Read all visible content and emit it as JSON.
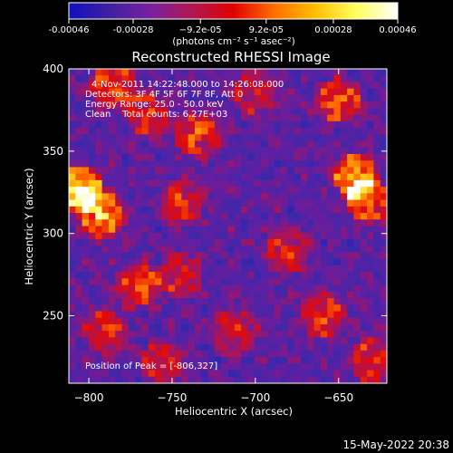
{
  "colorbar": {
    "tick_labels": [
      "-0.00046",
      "-0.00028",
      "−9.2e-05",
      "9.2e-05",
      "0.00028",
      "0.00046"
    ],
    "tick_values": [
      -0.00046,
      -0.00028,
      -9.2e-05,
      9.2e-05,
      0.00028,
      0.00046
    ],
    "range": [
      -0.00046,
      0.00046
    ],
    "unit_label": "(photons cm⁻² s⁻¹ asec⁻²)",
    "colors": [
      "#1010c0",
      "#4020a0",
      "#7a20a0",
      "#b01850",
      "#e00000",
      "#ff7000",
      "#ffc000",
      "#ffff60",
      "#ffffff"
    ]
  },
  "chart_data": {
    "type": "heatmap",
    "title": "Reconstructed RHESSI Image",
    "xlabel": "Heliocentric X (arcsec)",
    "ylabel": "Heliocentric Y (arcsec)",
    "xlim": [
      -812,
      -621
    ],
    "ylim": [
      209,
      400
    ],
    "x_ticks": [
      -800,
      -750,
      -700,
      -650
    ],
    "x_tick_labels": [
      "−800",
      "−750",
      "−700",
      "−650"
    ],
    "y_ticks": [
      250,
      300,
      350,
      400
    ],
    "y_tick_labels": [
      "250",
      "300",
      "350",
      "400"
    ],
    "annotations": {
      "time_range": "4-Nov-2011 14:22:48.000 to 14:26:08.000",
      "detectors": "Detectors: 3F 4F 5F 6F 7F 8F, Att 0",
      "energy_range": "Energy Range: 25.0 - 50.0 keV",
      "method": "Clean    Total counts: 6.27E+03",
      "peak": "Position of Peak = [-806,327]"
    },
    "peak_position": [
      -806,
      327
    ],
    "hotspots": [
      {
        "x": -806,
        "y": 327,
        "amp": 1.0
      },
      {
        "x": -792,
        "y": 311,
        "amp": 0.75
      },
      {
        "x": -785,
        "y": 390,
        "amp": 0.6
      },
      {
        "x": -765,
        "y": 372,
        "amp": 0.5
      },
      {
        "x": -735,
        "y": 360,
        "amp": 0.55
      },
      {
        "x": -744,
        "y": 320,
        "amp": 0.5
      },
      {
        "x": -770,
        "y": 268,
        "amp": 0.55
      },
      {
        "x": -790,
        "y": 240,
        "amp": 0.5
      },
      {
        "x": -745,
        "y": 275,
        "amp": 0.45
      },
      {
        "x": -712,
        "y": 240,
        "amp": 0.45
      },
      {
        "x": -680,
        "y": 290,
        "amp": 0.45
      },
      {
        "x": -640,
        "y": 335,
        "amp": 0.75
      },
      {
        "x": -632,
        "y": 320,
        "amp": 0.65
      },
      {
        "x": -650,
        "y": 380,
        "amp": 0.6
      },
      {
        "x": -660,
        "y": 250,
        "amp": 0.55
      },
      {
        "x": -630,
        "y": 222,
        "amp": 0.5
      },
      {
        "x": -700,
        "y": 385,
        "amp": 0.4
      },
      {
        "x": -755,
        "y": 222,
        "amp": 0.45
      }
    ]
  },
  "footer": {
    "timestamp": "15-May-2022 20:38"
  }
}
